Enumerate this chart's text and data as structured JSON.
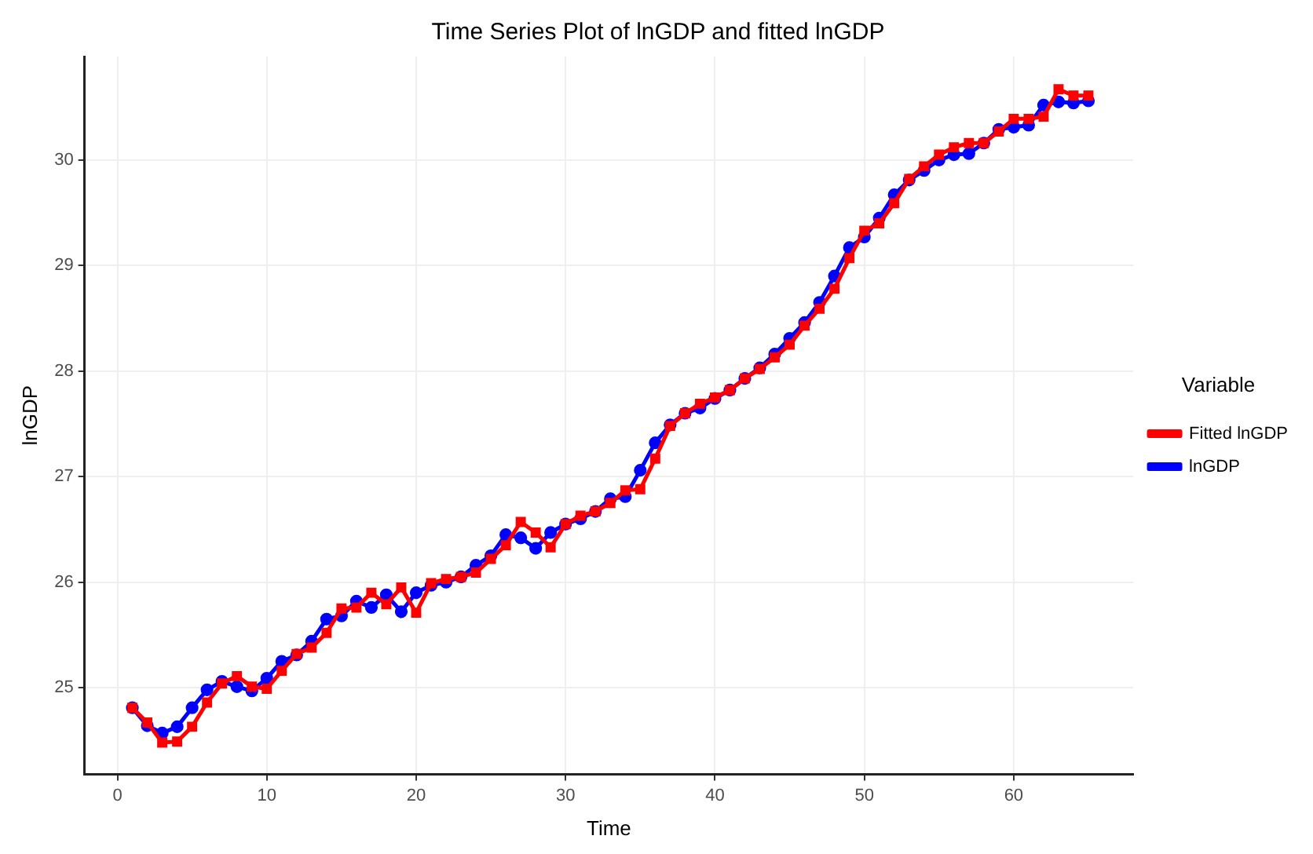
{
  "chart_data": {
    "type": "line",
    "title": "Time Series Plot of lnGDP and fitted lnGDP",
    "xlabel": "Time",
    "ylabel": "lnGDP",
    "legend_title": "Variable",
    "legend": "right",
    "grid": true,
    "x": [
      1,
      2,
      3,
      4,
      5,
      6,
      7,
      8,
      9,
      10,
      11,
      12,
      13,
      14,
      15,
      16,
      17,
      18,
      19,
      20,
      21,
      22,
      23,
      24,
      25,
      26,
      27,
      28,
      29,
      30,
      31,
      32,
      33,
      34,
      35,
      36,
      37,
      38,
      39,
      40,
      41,
      42,
      43,
      44,
      45,
      46,
      47,
      48,
      49,
      50,
      51,
      52,
      53,
      54,
      55,
      56,
      57,
      58,
      59,
      60,
      61,
      62,
      63,
      64,
      65
    ],
    "xlim": [
      -2.2,
      68
    ],
    "xticks": [
      0,
      10,
      20,
      30,
      40,
      50,
      60
    ],
    "ylim": [
      24.18,
      30.98
    ],
    "yticks": [
      25,
      26,
      27,
      28,
      29,
      30
    ],
    "series": [
      {
        "name": "Fitted lnGDP",
        "color": "#ff0000",
        "marker": "square",
        "values": [
          24.81,
          24.67,
          24.48,
          24.49,
          24.63,
          24.86,
          25.04,
          25.11,
          25.01,
          24.99,
          25.16,
          25.32,
          25.38,
          25.52,
          25.75,
          25.76,
          25.9,
          25.79,
          25.95,
          25.71,
          25.99,
          26.03,
          26.05,
          26.09,
          26.22,
          26.35,
          26.57,
          26.47,
          26.33,
          26.55,
          26.63,
          26.67,
          26.75,
          26.87,
          26.88,
          27.17,
          27.48,
          27.6,
          27.69,
          27.75,
          27.82,
          27.93,
          28.02,
          28.13,
          28.25,
          28.43,
          28.59,
          28.78,
          29.07,
          29.33,
          29.4,
          29.59,
          29.82,
          29.94,
          30.05,
          30.12,
          30.16,
          30.16,
          30.27,
          30.39,
          30.39,
          30.41,
          30.67,
          30.61,
          30.61
        ]
      },
      {
        "name": "lnGDP",
        "color": "#0000ff",
        "marker": "circle",
        "values": [
          24.81,
          24.64,
          24.57,
          24.63,
          24.81,
          24.98,
          25.06,
          25.01,
          24.97,
          25.09,
          25.25,
          25.31,
          25.44,
          25.65,
          25.68,
          25.82,
          25.76,
          25.88,
          25.72,
          25.9,
          25.97,
          26.0,
          26.05,
          26.16,
          26.25,
          26.45,
          26.42,
          26.32,
          26.47,
          26.55,
          26.6,
          26.67,
          26.79,
          26.81,
          27.06,
          27.32,
          27.49,
          27.6,
          27.65,
          27.74,
          27.82,
          27.93,
          28.03,
          28.16,
          28.31,
          28.46,
          28.65,
          28.9,
          29.17,
          29.27,
          29.45,
          29.67,
          29.81,
          29.9,
          30.0,
          30.05,
          30.06,
          30.16,
          30.29,
          30.31,
          30.33,
          30.52,
          30.55,
          30.54,
          30.56
        ]
      }
    ]
  }
}
